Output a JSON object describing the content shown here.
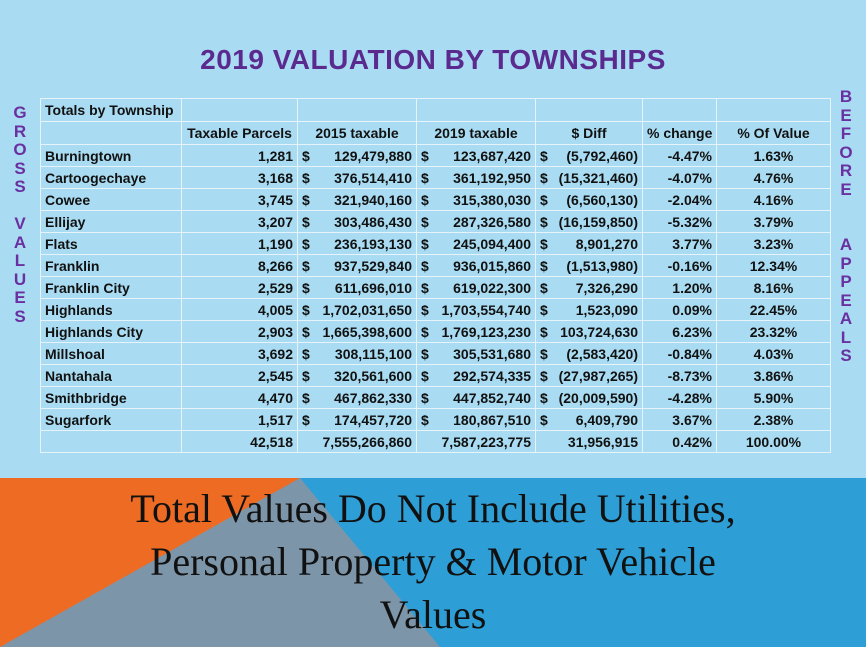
{
  "title": "2019 VALUATION BY TOWNSHIPS",
  "left_vertical": [
    "G",
    "R",
    "O",
    "S",
    "S",
    "",
    "V",
    "A",
    "L",
    "U",
    "E",
    "S"
  ],
  "right_vertical": [
    "B",
    "E",
    "F",
    "O",
    "R",
    "E",
    "",
    "",
    "A",
    "P",
    "P",
    "E",
    "A",
    "L",
    "S"
  ],
  "table": {
    "caption": "Totals by Township",
    "headers": [
      "Taxable Parcels",
      "2015 taxable",
      "2019 taxable",
      "$ Diff",
      "% change",
      "% Of  Value"
    ],
    "rows": [
      {
        "name": "Burningtown",
        "parcels": "1,281",
        "t2015": "129,479,880",
        "t2019": "123,687,420",
        "diff": "(5,792,460)",
        "change": "-4.47%",
        "pct": "1.63%"
      },
      {
        "name": "Cartoogechaye",
        "parcels": "3,168",
        "t2015": "376,514,410",
        "t2019": "361,192,950",
        "diff": "(15,321,460)",
        "change": "-4.07%",
        "pct": "4.76%"
      },
      {
        "name": "Cowee",
        "parcels": "3,745",
        "t2015": "321,940,160",
        "t2019": "315,380,030",
        "diff": "(6,560,130)",
        "change": "-2.04%",
        "pct": "4.16%"
      },
      {
        "name": "Ellijay",
        "parcels": "3,207",
        "t2015": "303,486,430",
        "t2019": "287,326,580",
        "diff": "(16,159,850)",
        "change": "-5.32%",
        "pct": "3.79%"
      },
      {
        "name": "Flats",
        "parcels": "1,190",
        "t2015": "236,193,130",
        "t2019": "245,094,400",
        "diff": "8,901,270",
        "change": "3.77%",
        "pct": "3.23%"
      },
      {
        "name": "Franklin",
        "parcels": "8,266",
        "t2015": "937,529,840",
        "t2019": "936,015,860",
        "diff": "(1,513,980)",
        "change": "-0.16%",
        "pct": "12.34%"
      },
      {
        "name": "Franklin City",
        "parcels": "2,529",
        "t2015": "611,696,010",
        "t2019": "619,022,300",
        "diff": "7,326,290",
        "change": "1.20%",
        "pct": "8.16%"
      },
      {
        "name": "Highlands",
        "parcels": "4,005",
        "t2015": "1,702,031,650",
        "t2019": "1,703,554,740",
        "diff": "1,523,090",
        "change": "0.09%",
        "pct": "22.45%"
      },
      {
        "name": "Highlands City",
        "parcels": "2,903",
        "t2015": "1,665,398,600",
        "t2019": "1,769,123,230",
        "diff": "103,724,630",
        "change": "6.23%",
        "pct": "23.32%"
      },
      {
        "name": "Millshoal",
        "parcels": "3,692",
        "t2015": "308,115,100",
        "t2019": "305,531,680",
        "diff": "(2,583,420)",
        "change": "-0.84%",
        "pct": "4.03%"
      },
      {
        "name": "Nantahala",
        "parcels": "2,545",
        "t2015": "320,561,600",
        "t2019": "292,574,335",
        "diff": "(27,987,265)",
        "change": "-8.73%",
        "pct": "3.86%"
      },
      {
        "name": "Smithbridge",
        "parcels": "4,470",
        "t2015": "467,862,330",
        "t2019": "447,852,740",
        "diff": "(20,009,590)",
        "change": "-4.28%",
        "pct": "5.90%"
      },
      {
        "name": "Sugarfork",
        "parcels": "1,517",
        "t2015": "174,457,720",
        "t2019": "180,867,510",
        "diff": "6,409,790",
        "change": "3.67%",
        "pct": "2.38%"
      }
    ],
    "totals": {
      "parcels": "42,518",
      "t2015": "7,555,266,860",
      "t2019": "7,587,223,775",
      "diff": "31,956,915",
      "change": "0.42%",
      "pct": "100.00%"
    }
  },
  "currency_symbol": "$",
  "note_lines": [
    "Total Values Do Not Include Utilities,",
    "Personal Property & Motor Vehicle",
    "Values"
  ],
  "colors": {
    "top_bg": "#a9dcf2",
    "bottom_blue": "#2e9fd6",
    "orange": "#ee6b24",
    "slate": "#7d95a8",
    "title": "#5b2a8e"
  }
}
